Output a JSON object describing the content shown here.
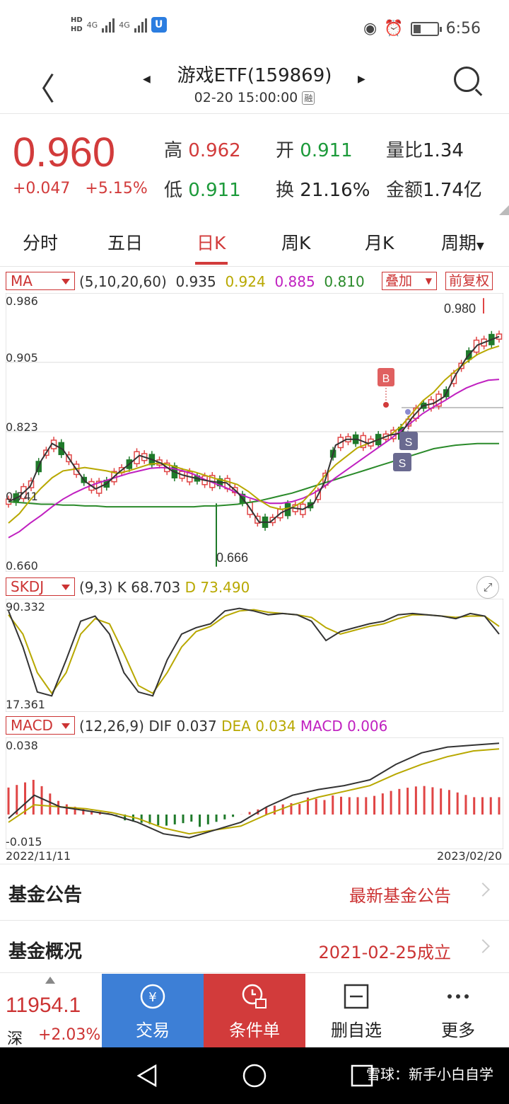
{
  "status": {
    "hd1": "HD",
    "hd2": "HD",
    "net1": "4G",
    "net2": "4G",
    "time": "6:56"
  },
  "nav": {
    "title": "游戏ETF(159869)",
    "datetime": "02-20 15:00:00",
    "rong": "融"
  },
  "quote": {
    "price": "0.960",
    "change": "+0.047",
    "change_pct": "+5.15%",
    "high_label": "高",
    "high": "0.962",
    "open_label": "开",
    "open": "0.911",
    "vol_ratio_label": "量比",
    "vol_ratio": "1.34",
    "low_label": "低",
    "low": "0.911",
    "turnover_label": "换",
    "turnover": "21.16%",
    "amount_label": "金额",
    "amount": "1.74亿"
  },
  "tabs": [
    "分时",
    "五日",
    "日K",
    "周K",
    "月K",
    "周期"
  ],
  "active_tab": "日K",
  "ma": {
    "selector": "MA",
    "params": "(5,10,20,60)",
    "v5": "0.935",
    "v10": "0.924",
    "v20": "0.885",
    "v60": "0.810",
    "overlay": "叠加",
    "adjust": "前复权",
    "colors": {
      "ma5": "#333333",
      "ma10": "#b8a800",
      "ma20": "#c020c0",
      "ma60": "#2a8a2a"
    }
  },
  "kchart": {
    "y_top": "0.986",
    "y_2": "0.905",
    "y_3": "0.823",
    "y_4": "0.741",
    "y_bottom": "0.660",
    "max_label": "0.980",
    "min_label": "0.666",
    "b_marker": "B",
    "s_marker": "S"
  },
  "skdj": {
    "selector": "SKDJ",
    "params": "(9,3)",
    "k_label": "K",
    "k": "68.703",
    "d_label": "D",
    "d": "73.490",
    "y_top": "90.332",
    "y_bottom": "17.361"
  },
  "macd": {
    "selector": "MACD",
    "params": "(12,26,9)",
    "dif_label": "DIF",
    "dif": "0.037",
    "dea_label": "DEA",
    "dea": "0.034",
    "macd_label": "MACD",
    "macd": "0.006",
    "y_top": "0.038",
    "y_bottom": "-0.015",
    "date_start": "2022/11/11",
    "date_end": "2023/02/20"
  },
  "chart_data": {
    "type": "candlestick",
    "ylim": [
      0.66,
      0.986
    ],
    "ma5": [
      0.742,
      0.748,
      0.76,
      0.79,
      0.81,
      0.803,
      0.784,
      0.766,
      0.757,
      0.763,
      0.775,
      0.785,
      0.796,
      0.792,
      0.787,
      0.778,
      0.773,
      0.77,
      0.767,
      0.765,
      0.764,
      0.753,
      0.737,
      0.718,
      0.718,
      0.729,
      0.735,
      0.733,
      0.74,
      0.765,
      0.808,
      0.815,
      0.815,
      0.81,
      0.815,
      0.82,
      0.822,
      0.84,
      0.854,
      0.857,
      0.865,
      0.89,
      0.91,
      0.925,
      0.93,
      0.935
    ],
    "ma10": [
      0.717,
      0.728,
      0.744,
      0.758,
      0.77,
      0.778,
      0.78,
      0.782,
      0.78,
      0.778,
      0.775,
      0.778,
      0.782,
      0.786,
      0.787,
      0.784,
      0.78,
      0.777,
      0.773,
      0.769,
      0.766,
      0.762,
      0.754,
      0.744,
      0.736,
      0.733,
      0.735,
      0.742,
      0.756,
      0.772,
      0.785,
      0.795,
      0.805,
      0.81,
      0.815,
      0.82,
      0.83,
      0.845,
      0.86,
      0.87,
      0.884,
      0.895,
      0.905,
      0.914,
      0.92,
      0.924
    ],
    "ma20": [
      0.7,
      0.707,
      0.717,
      0.726,
      0.736,
      0.745,
      0.752,
      0.758,
      0.763,
      0.767,
      0.771,
      0.775,
      0.778,
      0.781,
      0.782,
      0.781,
      0.778,
      0.774,
      0.768,
      0.763,
      0.758,
      0.752,
      0.747,
      0.743,
      0.74,
      0.74,
      0.742,
      0.746,
      0.752,
      0.76,
      0.77,
      0.779,
      0.788,
      0.797,
      0.806,
      0.815,
      0.825,
      0.835,
      0.845,
      0.853,
      0.86,
      0.868,
      0.875,
      0.88,
      0.884,
      0.885
    ],
    "ma60": [
      0.742,
      0.741,
      0.74,
      0.739,
      0.739,
      0.738,
      0.738,
      0.737,
      0.737,
      0.736,
      0.736,
      0.736,
      0.736,
      0.736,
      0.736,
      0.736,
      0.736,
      0.736,
      0.737,
      0.737,
      0.738,
      0.739,
      0.741,
      0.743,
      0.746,
      0.749,
      0.752,
      0.756,
      0.76,
      0.764,
      0.768,
      0.772,
      0.776,
      0.78,
      0.784,
      0.788,
      0.792,
      0.796,
      0.8,
      0.804,
      0.806,
      0.808,
      0.809,
      0.81,
      0.81,
      0.81
    ],
    "kdj_k": [
      88,
      60,
      25,
      22,
      50,
      80,
      84,
      70,
      40,
      25,
      22,
      50,
      70,
      75,
      78,
      88,
      90,
      88,
      85,
      86,
      85,
      80,
      65,
      72,
      75,
      78,
      80,
      85,
      86,
      85,
      84,
      82,
      86,
      84,
      70
    ],
    "kdj_d": [
      85,
      70,
      40,
      24,
      40,
      70,
      82,
      78,
      55,
      30,
      24,
      40,
      60,
      72,
      76,
      84,
      88,
      89,
      87,
      86,
      85,
      83,
      75,
      70,
      73,
      76,
      78,
      82,
      85,
      85,
      84,
      83,
      84,
      84,
      76
    ],
    "dif": [
      -0.002,
      0.01,
      0.004,
      0.002,
      0.0,
      -0.004,
      -0.01,
      -0.012,
      -0.008,
      -0.004,
      0.004,
      0.01,
      0.013,
      0.015,
      0.018,
      0.026,
      0.032,
      0.035,
      0.036,
      0.037
    ],
    "dea": [
      -0.004,
      0.005,
      0.004,
      0.003,
      0.001,
      -0.002,
      -0.007,
      -0.01,
      -0.008,
      -0.006,
      0.0,
      0.005,
      0.009,
      0.012,
      0.015,
      0.021,
      0.026,
      0.03,
      0.033,
      0.034
    ]
  },
  "list": [
    {
      "title": "基金公告",
      "value": "最新基金公告"
    },
    {
      "title": "基金概况",
      "value": "2021-02-25成立"
    }
  ],
  "bottom": {
    "index_value": "11954.1",
    "index_name": "深",
    "index_pct": "+2.03%",
    "trade": "交易",
    "condition": "条件单",
    "remove": "删自选",
    "more": "更多"
  },
  "watermark": "雪球：新手小白自学"
}
